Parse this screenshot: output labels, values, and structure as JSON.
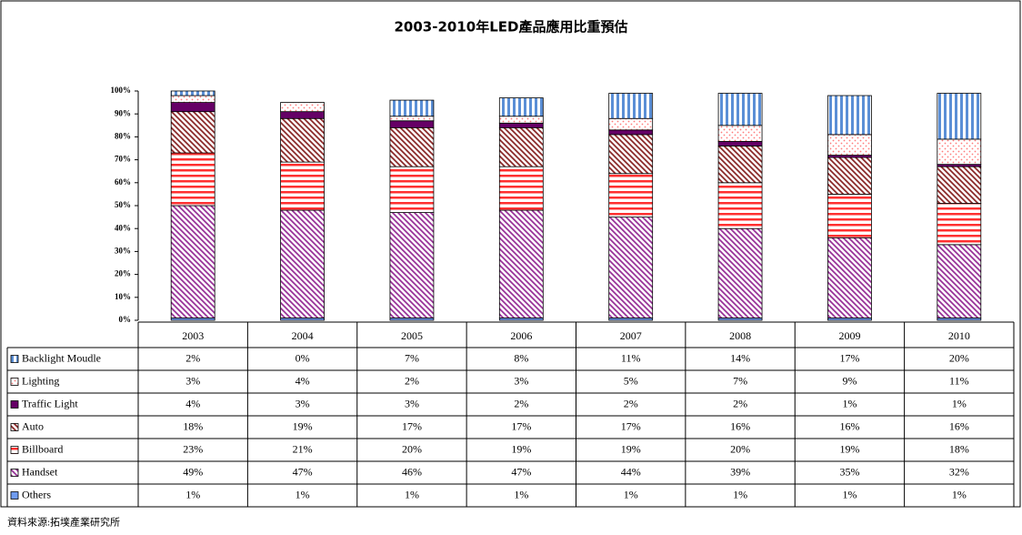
{
  "chart_data": {
    "type": "bar",
    "stacked": true,
    "title": "2003-2010年LED產品應用比重預估",
    "source": "資料來源:拓墣產業研究所",
    "categories": [
      "2003",
      "2004",
      "2005",
      "2006",
      "2007",
      "2008",
      "2009",
      "2010"
    ],
    "ylim": [
      0,
      100
    ],
    "yticks": [
      {
        "value": 0,
        "label": "0%"
      },
      {
        "value": 10,
        "label": "10%"
      },
      {
        "value": 20,
        "label": "20%"
      },
      {
        "value": 30,
        "label": "30%"
      },
      {
        "value": 40,
        "label": "40%"
      },
      {
        "value": 50,
        "label": "50%"
      },
      {
        "value": 60,
        "label": "60%"
      },
      {
        "value": 70,
        "label": "70%"
      },
      {
        "value": 80,
        "label": "80%"
      },
      {
        "value": 90,
        "label": "90%"
      },
      {
        "value": 100,
        "label": "100%"
      }
    ],
    "series": [
      {
        "name": "Backlight Moudle",
        "color": "#5b8fd6",
        "hatch": "vertical",
        "values": [
          2,
          0,
          7,
          8,
          11,
          14,
          17,
          20
        ],
        "value_labels": [
          "2%",
          "0%",
          "7%",
          "8%",
          "11%",
          "14%",
          "17%",
          "20%"
        ]
      },
      {
        "name": "Lighting",
        "color": "#ff7b7b",
        "hatch": "dots",
        "values": [
          3,
          4,
          2,
          3,
          5,
          7,
          9,
          11
        ],
        "value_labels": [
          "3%",
          "4%",
          "2%",
          "3%",
          "5%",
          "7%",
          "9%",
          "11%"
        ]
      },
      {
        "name": "Traffic Light",
        "color": "#660066",
        "hatch": "solid",
        "values": [
          4,
          3,
          3,
          2,
          2,
          2,
          1,
          1
        ],
        "value_labels": [
          "4%",
          "3%",
          "3%",
          "2%",
          "2%",
          "2%",
          "1%",
          "1%"
        ]
      },
      {
        "name": "Auto",
        "color": "#8b2a2a",
        "hatch": "diagonal",
        "values": [
          18,
          19,
          17,
          17,
          17,
          16,
          16,
          16
        ],
        "value_labels": [
          "18%",
          "19%",
          "17%",
          "17%",
          "17%",
          "16%",
          "16%",
          "16%"
        ]
      },
      {
        "name": "Billboard",
        "color": "#ff3030",
        "hatch": "horizontal",
        "values": [
          23,
          21,
          20,
          19,
          19,
          20,
          19,
          18
        ],
        "value_labels": [
          "23%",
          "21%",
          "20%",
          "19%",
          "19%",
          "20%",
          "19%",
          "18%"
        ]
      },
      {
        "name": "Handset",
        "color": "#993399",
        "hatch": "diagonal",
        "values": [
          49,
          47,
          46,
          47,
          44,
          39,
          35,
          32
        ],
        "value_labels": [
          "49%",
          "47%",
          "46%",
          "47%",
          "44%",
          "39%",
          "35%",
          "32%"
        ]
      },
      {
        "name": "Others",
        "color": "#6f9bf0",
        "hatch": "solid",
        "values": [
          1,
          1,
          1,
          1,
          1,
          1,
          1,
          1
        ],
        "value_labels": [
          "1%",
          "1%",
          "1%",
          "1%",
          "1%",
          "1%",
          "1%",
          "1%"
        ]
      }
    ]
  }
}
